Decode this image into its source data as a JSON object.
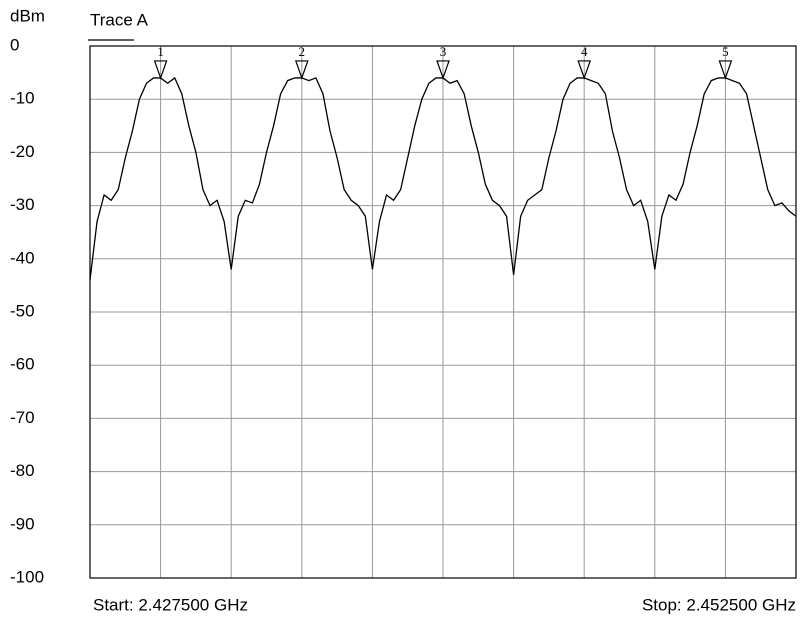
{
  "chart_data": {
    "type": "line",
    "y_label": "dBm",
    "legend": "Trace A",
    "start_label": "Start: 2.427500 GHz",
    "stop_label": "Stop: 2.452500 GHz",
    "xlim": [
      2.4275,
      2.4525
    ],
    "xticks": [
      2.4275,
      2.43,
      2.4325,
      2.435,
      2.4375,
      2.44,
      2.4425,
      2.445,
      2.4475,
      2.45,
      2.4525
    ],
    "ylim": [
      -100,
      0
    ],
    "yticks": [
      0,
      -10,
      -20,
      -30,
      -40,
      -50,
      -60,
      -70,
      -80,
      -90,
      -100
    ],
    "grid": true,
    "color": "#000000",
    "grid_color": "#999999",
    "x": [
      2.4275,
      2.42775,
      2.428,
      2.42825,
      2.4285,
      2.42875,
      2.429,
      2.42925,
      2.4295,
      2.42975,
      2.43,
      2.43025,
      2.4305,
      2.43075,
      2.431,
      2.43125,
      2.4315,
      2.43175,
      2.432,
      2.43225,
      2.4325,
      2.43275,
      2.433,
      2.43325,
      2.4335,
      2.43375,
      2.434,
      2.43425,
      2.4345,
      2.43475,
      2.435,
      2.43525,
      2.4355,
      2.43575,
      2.436,
      2.43625,
      2.4365,
      2.43675,
      2.437,
      2.43725,
      2.4375,
      2.43775,
      2.438,
      2.43825,
      2.4385,
      2.43875,
      2.439,
      2.43925,
      2.4395,
      2.43975,
      2.44,
      2.44025,
      2.4405,
      2.44075,
      2.441,
      2.44125,
      2.4415,
      2.44175,
      2.442,
      2.44225,
      2.4425,
      2.44275,
      2.443,
      2.44325,
      2.4435,
      2.44375,
      2.444,
      2.44425,
      2.4445,
      2.44475,
      2.445,
      2.44525,
      2.4455,
      2.44575,
      2.446,
      2.44625,
      2.4465,
      2.44675,
      2.447,
      2.44725,
      2.4475,
      2.44775,
      2.448,
      2.44825,
      2.4485,
      2.44875,
      2.449,
      2.44925,
      2.4495,
      2.44975,
      2.45,
      2.45025,
      2.4505,
      2.45075,
      2.451,
      2.45125,
      2.4515,
      2.45175,
      2.452,
      2.45225,
      2.4525
    ],
    "values": [
      -44,
      -33,
      -28,
      -29,
      -27,
      -21,
      -16,
      -10,
      -7,
      -6,
      -6,
      -7,
      -6,
      -9,
      -15,
      -20,
      -27,
      -30,
      -29,
      -33,
      -42,
      -32,
      -29,
      -29.5,
      -26,
      -20,
      -15,
      -9,
      -6.5,
      -6,
      -6,
      -6.5,
      -6,
      -9,
      -16,
      -21,
      -27,
      -29,
      -30,
      -32,
      -42,
      -33,
      -28,
      -29,
      -27,
      -21,
      -15,
      -10,
      -7,
      -6,
      -6,
      -7,
      -6.5,
      -9,
      -15,
      -20,
      -26,
      -29,
      -30,
      -32,
      -43,
      -32,
      -29,
      -28,
      -27,
      -21,
      -16,
      -10,
      -7,
      -6,
      -6,
      -6.5,
      -7,
      -9,
      -16,
      -21,
      -27,
      -30,
      -29,
      -33,
      -42,
      -32,
      -28,
      -29,
      -26,
      -20,
      -15,
      -9,
      -6.5,
      -6,
      -6,
      -6.5,
      -7,
      -9,
      -15,
      -21,
      -27,
      -30,
      -29.5,
      -31,
      -32
    ],
    "markers": [
      {
        "label": "1",
        "x": 2.43,
        "y": -6
      },
      {
        "label": "2",
        "x": 2.435,
        "y": -6
      },
      {
        "label": "3",
        "x": 2.44,
        "y": -6
      },
      {
        "label": "4",
        "x": 2.445,
        "y": -6
      },
      {
        "label": "5",
        "x": 2.45,
        "y": -6
      }
    ]
  }
}
